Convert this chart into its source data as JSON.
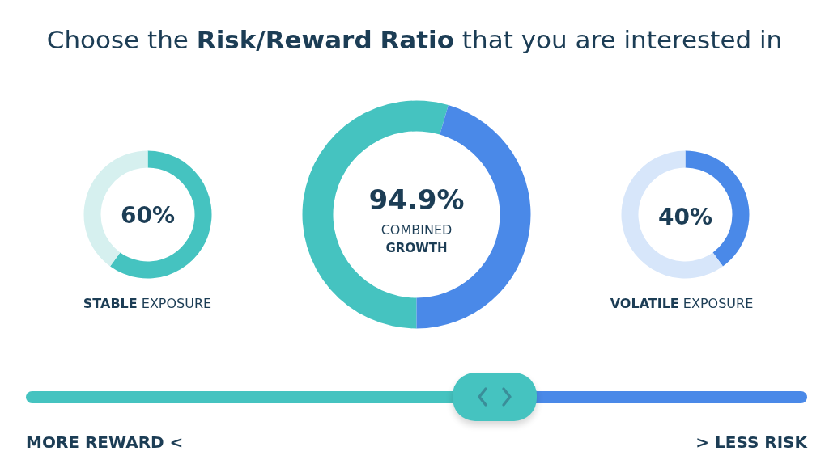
{
  "chart_data": [
    {
      "type": "other",
      "title": "Choose the Risk/Reward Ratio that you are interested in"
    },
    {
      "type": "donut",
      "title": "STABLE EXPOSURE",
      "categories": [
        null,
        null
      ],
      "values": [
        60,
        40
      ],
      "colors": [
        "#45c3c0",
        "#d6f0ef"
      ],
      "annotations": [
        "60%"
      ]
    },
    {
      "type": "donut",
      "categories": [
        null,
        null
      ],
      "values": [
        54.5,
        45.5
      ],
      "colors": [
        "#45c3c0",
        "#4a89e8"
      ],
      "annotations": [
        "94.9%",
        "COMBINED",
        "GROWTH"
      ]
    },
    {
      "type": "donut",
      "title": "VOLATILE EXPOSURE",
      "categories": [
        null,
        null
      ],
      "values": [
        40,
        60
      ],
      "colors": [
        "#4a89e8",
        "#d7e6fa"
      ],
      "annotations": [
        "40%"
      ]
    },
    {
      "type": "other",
      "annotations": [
        "MORE REWARD <",
        "> LESS RISK"
      ]
    }
  ]
}
